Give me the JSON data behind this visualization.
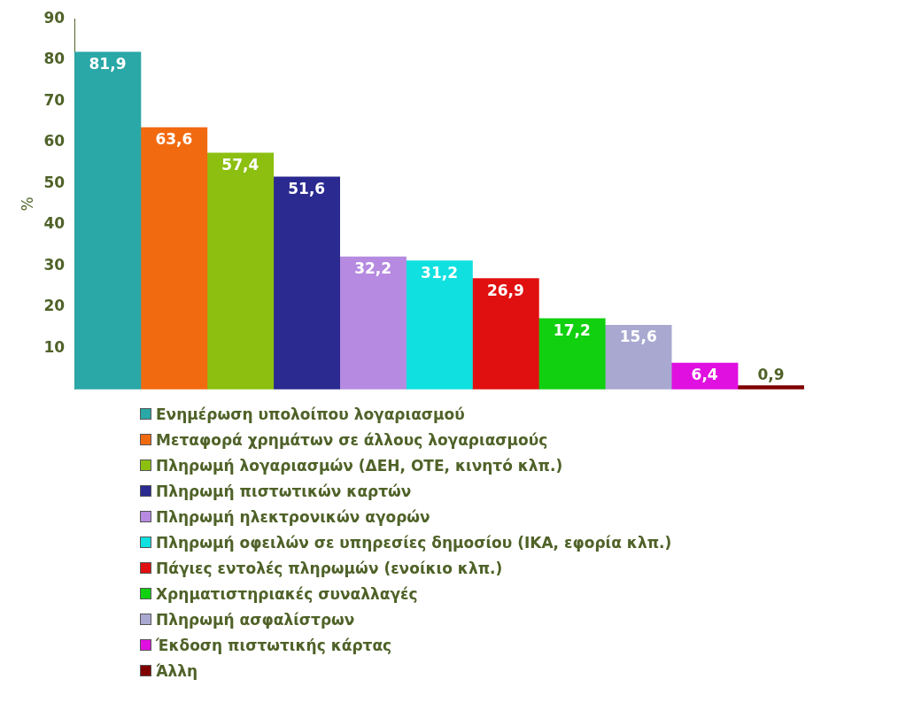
{
  "chart_data": {
    "type": "bar",
    "ylabel": "%",
    "stacked": true,
    "categories": [
      null,
      null,
      null,
      null,
      null,
      null,
      null,
      null,
      null,
      null,
      null
    ],
    "series": [
      {
        "name": "Ενημέρωση υπολοίπου λογαριασμού",
        "color": "#2aa7a7",
        "values": [
          81.9,
          null,
          null,
          null,
          null,
          null,
          null,
          null,
          null,
          null,
          null
        ],
        "value_labels": [
          "81,9",
          null,
          null,
          null,
          null,
          null,
          null,
          null,
          null,
          null,
          null
        ]
      },
      {
        "name": "Μεταφορά χρημάτων σε άλλους λογαριασμούς",
        "color": "#f26a10",
        "values": [
          null,
          63.6,
          null,
          null,
          null,
          null,
          null,
          null,
          null,
          null,
          null
        ],
        "value_labels": [
          null,
          "63,6",
          null,
          null,
          null,
          null,
          null,
          null,
          null,
          null,
          null
        ]
      },
      {
        "name": "Πληρωμή λογαριασμών (ΔΕΗ, ΟΤΕ, κινητό κλπ.)",
        "color": "#8cbf10",
        "values": [
          null,
          null,
          57.4,
          null,
          null,
          null,
          null,
          null,
          null,
          null,
          null
        ],
        "value_labels": [
          null,
          null,
          "57,4",
          null,
          null,
          null,
          null,
          null,
          null,
          null,
          null
        ]
      },
      {
        "name": "Πληρωμή πιστωτικών καρτών",
        "color": "#2a2a90",
        "values": [
          null,
          null,
          null,
          51.6,
          null,
          null,
          null,
          null,
          null,
          null,
          null
        ],
        "value_labels": [
          null,
          null,
          null,
          "51,6",
          null,
          null,
          null,
          null,
          null,
          null,
          null
        ]
      },
      {
        "name": "Πληρωμή ηλεκτρονικών αγορών",
        "color": "#b58ae0",
        "values": [
          null,
          null,
          null,
          null,
          32.2,
          null,
          null,
          null,
          null,
          null,
          null
        ],
        "value_labels": [
          null,
          null,
          null,
          null,
          "32,2",
          null,
          null,
          null,
          null,
          null,
          null
        ]
      },
      {
        "name": "Πληρωμή οφειλών σε υπηρεσίες δημοσίου (ΙΚΑ, εφορία κλπ.)",
        "color": "#10e0e0",
        "values": [
          null,
          null,
          null,
          null,
          null,
          31.2,
          null,
          null,
          null,
          null,
          null
        ],
        "value_labels": [
          null,
          null,
          null,
          null,
          null,
          "31,2",
          null,
          null,
          null,
          null,
          null
        ]
      },
      {
        "name": "Πάγιες εντολές πληρωμών (ενοίκιο κλπ.)",
        "color": "#e01010",
        "values": [
          null,
          null,
          null,
          null,
          null,
          null,
          26.9,
          null,
          null,
          null,
          null
        ],
        "value_labels": [
          null,
          null,
          null,
          null,
          null,
          null,
          "26,9",
          null,
          null,
          null,
          null
        ]
      },
      {
        "name": "Χρηματιστηριακές συναλλαγές",
        "color": "#10d010",
        "values": [
          null,
          null,
          null,
          null,
          null,
          null,
          null,
          17.2,
          null,
          null,
          null
        ],
        "value_labels": [
          null,
          null,
          null,
          null,
          null,
          null,
          null,
          "17,2",
          null,
          null,
          null
        ]
      },
      {
        "name": "Πληρωμή ασφαλίστρων",
        "color": "#a8a8d0",
        "values": [
          null,
          null,
          null,
          null,
          null,
          null,
          null,
          null,
          15.6,
          null,
          null
        ],
        "value_labels": [
          null,
          null,
          null,
          null,
          null,
          null,
          null,
          null,
          "15,6",
          null,
          null
        ]
      },
      {
        "name": "Έκδοση πιστωτικής κάρτας",
        "color": "#e010e0",
        "values": [
          null,
          null,
          null,
          null,
          null,
          null,
          null,
          null,
          null,
          6.4,
          null
        ],
        "value_labels": [
          null,
          null,
          null,
          null,
          null,
          null,
          null,
          null,
          null,
          "6,4",
          null
        ]
      },
      {
        "name": "Άλλη",
        "color": "#800000",
        "values": [
          null,
          null,
          null,
          null,
          null,
          null,
          null,
          null,
          null,
          null,
          0.9
        ],
        "value_labels": [
          null,
          null,
          null,
          null,
          null,
          null,
          null,
          null,
          null,
          null,
          "0,9"
        ]
      }
    ],
    "ylim": [
      0,
      90
    ],
    "yticks": [
      10,
      20,
      30,
      40,
      50,
      60,
      70,
      80,
      90
    ],
    "tick_labels": "y",
    "legend": "bottom"
  }
}
